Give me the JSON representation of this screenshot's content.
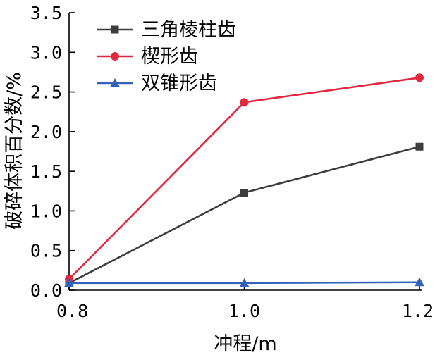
{
  "chart_data": {
    "type": "line",
    "x": [
      0.8,
      1.0,
      1.2
    ],
    "x_ticks": [
      "0.8",
      "1.0",
      "1.2"
    ],
    "y_ticks": [
      "0.0",
      "0.5",
      "1.0",
      "1.5",
      "2.0",
      "2.5",
      "3.0",
      "3.5"
    ],
    "xlim": [
      0.8,
      1.2
    ],
    "ylim": [
      0.0,
      3.5
    ],
    "xlabel": "冲程/m",
    "ylabel": "破碎体积百分数/%",
    "grid": false,
    "legend_position": "top-left",
    "series": [
      {
        "name": "三角棱柱齿",
        "values": [
          0.09,
          1.23,
          1.81
        ],
        "color": "#3d3d3f",
        "marker": "square"
      },
      {
        "name": "楔形齿",
        "values": [
          0.14,
          2.37,
          2.68
        ],
        "color": "#e0293e",
        "marker": "circle"
      },
      {
        "name": "双锥形齿",
        "values": [
          0.09,
          0.09,
          0.1
        ],
        "color": "#3462b8",
        "marker": "triangle"
      }
    ]
  }
}
